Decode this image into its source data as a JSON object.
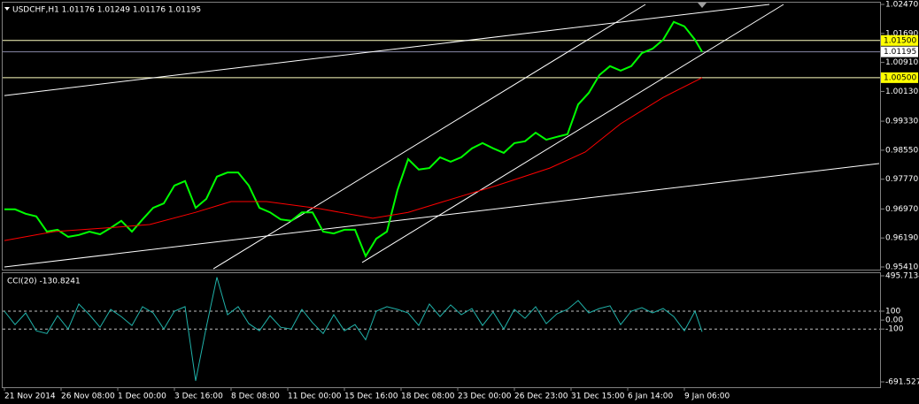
{
  "chart_data": [
    {
      "type": "line",
      "title": "USDCHF,H1  1.01176 1.01249 1.01176 1.01195",
      "xlim": [
        0,
        247
      ],
      "ylim": [
        0.9541,
        1.0247
      ],
      "yticks": [
        {
          "value": 1.0247,
          "label": "1.02470"
        },
        {
          "value": 1.0169,
          "label": "1.01690"
        },
        {
          "value": 1.0091,
          "label": "1.00910"
        },
        {
          "value": 1.0013,
          "label": "1.00130"
        },
        {
          "value": 0.9933,
          "label": "0.99330"
        },
        {
          "value": 0.9855,
          "label": "0.98550"
        },
        {
          "value": 0.9777,
          "label": "0.97770"
        },
        {
          "value": 0.9697,
          "label": "0.96970"
        },
        {
          "value": 0.9619,
          "label": "0.96190"
        },
        {
          "value": 0.9541,
          "label": "0.95410"
        }
      ],
      "series": [
        {
          "color": "#00ff00",
          "x": [
            0,
            3,
            6,
            9,
            12,
            15,
            18,
            21,
            24,
            27,
            30,
            33,
            36,
            39,
            42,
            45,
            48,
            51,
            54,
            57,
            60,
            63,
            66,
            69,
            72,
            75,
            78,
            81,
            84,
            87,
            90,
            93,
            96,
            99,
            102,
            105,
            108,
            111,
            114,
            117,
            120,
            123,
            126,
            129,
            132,
            135,
            138,
            141,
            144,
            147,
            150,
            153,
            156,
            159,
            162,
            165,
            168,
            171,
            174,
            177,
            180,
            183,
            186,
            189,
            192,
            195,
            197
          ],
          "values": [
            0.9696,
            0.9696,
            0.9684,
            0.9677,
            0.9636,
            0.9641,
            0.9622,
            0.9627,
            0.9636,
            0.9629,
            0.9646,
            0.9665,
            0.9636,
            0.9669,
            0.97,
            0.9712,
            0.976,
            0.9772,
            0.97,
            0.9724,
            0.9784,
            0.9795,
            0.9795,
            0.976,
            0.97,
            0.9688,
            0.9669,
            0.9665,
            0.9688,
            0.9688,
            0.9636,
            0.9631,
            0.9641,
            0.9641,
            0.957,
            0.9617,
            0.9636,
            0.9748,
            0.9831,
            0.9803,
            0.9807,
            0.9836,
            0.9824,
            0.9836,
            0.986,
            0.9874,
            0.986,
            0.9848,
            0.9874,
            0.9879,
            0.9902,
            0.9883,
            0.9891,
            0.9898,
            0.9978,
            1.0009,
            1.0057,
            1.0081,
            1.0069,
            1.0081,
            1.0116,
            1.0128,
            1.0152,
            1.02,
            1.0188,
            1.0152,
            1.01195
          ]
        },
        {
          "color": "#ff0000",
          "x": [
            0,
            14,
            29,
            41,
            54,
            64,
            74,
            89,
            104,
            114,
            124,
            139,
            154,
            164,
            174,
            186,
            197
          ],
          "values": [
            0.9612,
            0.9636,
            0.9646,
            0.9655,
            0.9688,
            0.9717,
            0.9717,
            0.9698,
            0.9672,
            0.9688,
            0.9717,
            0.976,
            0.9807,
            0.985,
            0.9926,
            0.9997,
            1.005
          ]
        }
      ],
      "levels": [
        {
          "value": 1.015,
          "label": "1.01500",
          "color": "#ffff00"
        },
        {
          "value": 1.01195,
          "label": "1.01195",
          "color": "#ffffff"
        },
        {
          "value": 1.005,
          "label": "1.00500",
          "color": "#ffff00"
        }
      ],
      "trendlines": [
        {
          "x": [
            0,
            216
          ],
          "y": [
            1.0002,
            1.0247
          ]
        },
        {
          "x": [
            59,
            181
          ],
          "y": [
            0.9536,
            1.0247
          ]
        },
        {
          "x": [
            101,
            220
          ],
          "y": [
            0.9553,
            1.0247
          ]
        },
        {
          "x": [
            0,
            247
          ],
          "y": [
            0.9541,
            0.9819
          ]
        }
      ]
    },
    {
      "type": "line",
      "title": "CCI(20) -130.8241",
      "xlim": [
        0,
        247
      ],
      "ylim": [
        -691.5273,
        495.7134
      ],
      "yticks": [
        495.7134,
        100,
        {
          "value": 0,
          "label": "0.00"
        },
        -100,
        -691.5273
      ],
      "xticks": [
        {
          "value": 0,
          "label": "21 Nov 2014"
        },
        {
          "value": 16,
          "label": "26 Nov 08:00"
        },
        {
          "value": 32,
          "label": "1 Dec 00:00"
        },
        {
          "value": 48,
          "label": "3 Dec 16:00"
        },
        {
          "value": 64,
          "label": "8 Dec 08:00"
        },
        {
          "value": 80,
          "label": "11 Dec 00:00"
        },
        {
          "value": 96,
          "label": "15 Dec 16:00"
        },
        {
          "value": 112,
          "label": "18 Dec 08:00"
        },
        {
          "value": 128,
          "label": "23 Dec 00:00"
        },
        {
          "value": 144,
          "label": "26 Dec 23:00"
        },
        {
          "value": 160,
          "label": "31 Dec 15:00"
        },
        {
          "value": 176,
          "label": "6 Jan 14:00"
        },
        {
          "value": 192,
          "label": "9 Jan 06:00"
        }
      ],
      "series": [
        {
          "color": "#20b2aa",
          "x": [
            0,
            3,
            6,
            9,
            12,
            15,
            18,
            21,
            24,
            27,
            30,
            33,
            36,
            39,
            42,
            45,
            48,
            51,
            54,
            57,
            60,
            63,
            66,
            69,
            72,
            75,
            78,
            81,
            84,
            87,
            90,
            93,
            96,
            99,
            102,
            105,
            108,
            111,
            114,
            117,
            120,
            123,
            126,
            129,
            132,
            135,
            138,
            141,
            144,
            147,
            150,
            153,
            156,
            159,
            162,
            165,
            168,
            171,
            174,
            177,
            180,
            183,
            186,
            189,
            192,
            195,
            197
          ],
          "values": [
            100,
            -50,
            80,
            -120,
            -150,
            50,
            -100,
            180,
            60,
            -80,
            120,
            40,
            -60,
            150,
            80,
            -100,
            100,
            150,
            -680,
            -80,
            480,
            60,
            150,
            -40,
            -120,
            50,
            -80,
            -100,
            120,
            -30,
            -150,
            60,
            -120,
            -50,
            -220,
            100,
            150,
            120,
            80,
            -60,
            180,
            40,
            170,
            60,
            130,
            -60,
            90,
            -100,
            120,
            20,
            150,
            -40,
            70,
            120,
            220,
            80,
            130,
            160,
            -50,
            100,
            140,
            80,
            130,
            40,
            -120,
            100,
            -130.8241
          ]
        }
      ]
    }
  ]
}
